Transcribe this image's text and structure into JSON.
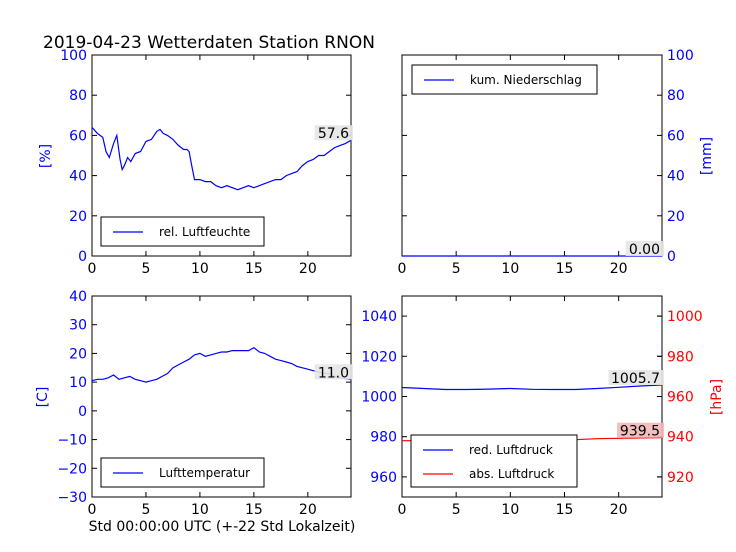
{
  "title": "2019-04-23 Wetterdaten Station RNON",
  "xlabel_bottom": "Std 00:00:00 UTC (+-22 Std Lokalzeit)",
  "colors": {
    "blue": "#0000ff",
    "red": "#ff0000",
    "ink": "#000000",
    "last_bg": "#e6e6e6",
    "last_bg_red": "#f2b8b8"
  },
  "chart_data": [
    {
      "id": "humidity",
      "type": "line",
      "ylabel": "[%]",
      "ylim": [
        0,
        100
      ],
      "yticks": [
        0,
        20,
        40,
        60,
        80,
        100
      ],
      "xlim": [
        0,
        24
      ],
      "xticks": [
        0,
        5,
        10,
        15,
        20
      ],
      "legend": {
        "loc": "lower-left",
        "entries": [
          "rel. Luftfeuchte"
        ]
      },
      "last_value_label": "57.6",
      "series": [
        {
          "name": "rel. Luftfeuchte",
          "color": "#0000ff",
          "x": [
            0,
            0.5,
            1,
            1.3,
            1.6,
            2,
            2.3,
            2.6,
            2.8,
            3,
            3.3,
            3.6,
            4,
            4.5,
            5,
            5.5,
            6,
            6.3,
            6.6,
            7,
            7.5,
            8,
            8.5,
            8.8,
            9,
            9.2,
            9.5,
            10,
            10.5,
            11,
            11.5,
            12,
            12.5,
            13,
            13.5,
            14,
            14.5,
            15,
            15.5,
            16,
            16.5,
            17,
            17.5,
            18,
            18.5,
            19,
            19.5,
            20,
            20.5,
            21,
            21.5,
            22,
            22.5,
            23,
            23.5,
            24
          ],
          "y": [
            64,
            61,
            59,
            52,
            49,
            56,
            60,
            48,
            43,
            45,
            49,
            47,
            51,
            52,
            57,
            58,
            62,
            63,
            61,
            60,
            58,
            55,
            53,
            53,
            52,
            46,
            38,
            38,
            37,
            37,
            35,
            34,
            35,
            34,
            33,
            34,
            35,
            34,
            35,
            36,
            37,
            38,
            38,
            40,
            41,
            42,
            45,
            47,
            48,
            50,
            50,
            52,
            54,
            55,
            56,
            57.6
          ]
        }
      ]
    },
    {
      "id": "precip",
      "type": "line",
      "ylabel": "[mm]",
      "ylim": [
        0,
        100
      ],
      "yticks": [
        0,
        20,
        40,
        60,
        80,
        100
      ],
      "xlim": [
        0,
        24
      ],
      "xticks": [
        0,
        5,
        10,
        15,
        20
      ],
      "legend": {
        "loc": "top-left",
        "entries": [
          "kum. Niederschlag"
        ]
      },
      "last_value_label": "0.00",
      "series": [
        {
          "name": "kum. Niederschlag",
          "color": "#0000ff",
          "x": [
            0,
            24
          ],
          "y": [
            0,
            0
          ]
        }
      ]
    },
    {
      "id": "temperature",
      "type": "line",
      "ylabel": "[C]",
      "ylim": [
        -30,
        40
      ],
      "yticks": [
        -30,
        -20,
        -10,
        0,
        10,
        20,
        30,
        40
      ],
      "xlim": [
        0,
        24
      ],
      "xticks": [
        0,
        5,
        10,
        15,
        20
      ],
      "legend": {
        "loc": "lower-left",
        "entries": [
          "Lufttemperatur"
        ]
      },
      "last_value_label": "11.0",
      "series": [
        {
          "name": "Lufttemperatur",
          "color": "#0000ff",
          "x": [
            0,
            0.5,
            1,
            1.5,
            2,
            2.5,
            3,
            3.5,
            4,
            4.5,
            5,
            5.5,
            6,
            6.5,
            7,
            7.5,
            8,
            8.5,
            9,
            9.5,
            10,
            10.5,
            11,
            11.5,
            12,
            12.5,
            13,
            13.5,
            14,
            14.5,
            15,
            15.5,
            16,
            16.5,
            17,
            17.5,
            18,
            18.5,
            19,
            19.5,
            20,
            20.5,
            21,
            21.5,
            22,
            22.5,
            23,
            23.5,
            24
          ],
          "y": [
            10.5,
            11,
            11,
            11.5,
            12.5,
            11,
            11.5,
            12,
            11,
            10.5,
            10,
            10.5,
            11,
            12,
            13,
            15,
            16,
            17,
            18,
            19.5,
            20,
            19,
            19.5,
            20,
            20.5,
            20.5,
            21,
            21,
            21,
            21,
            22,
            20.5,
            20,
            19,
            18,
            17.5,
            17,
            16.5,
            15.5,
            15,
            14.5,
            14,
            13.5,
            13,
            13,
            12,
            11.5,
            11.2,
            11.0
          ]
        }
      ]
    },
    {
      "id": "pressure",
      "type": "line",
      "ylabel_right": "[hPa]",
      "ylim": [
        950,
        1050
      ],
      "yticks": [
        960,
        980,
        1000,
        1020,
        1040
      ],
      "ylim_right": [
        910,
        1010
      ],
      "yticks_right": [
        920,
        940,
        960,
        980,
        1000
      ],
      "xlim": [
        0,
        24
      ],
      "xticks": [
        0,
        5,
        10,
        15,
        20
      ],
      "legend": {
        "loc": "lower-left",
        "entries": [
          "red. Luftdruck",
          "abs. Luftdruck"
        ]
      },
      "last_value_label": "1005.7",
      "last_value_label_right": "939.5",
      "series": [
        {
          "name": "red. Luftdruck",
          "color": "#0000ff",
          "axis": "left",
          "x": [
            0,
            2,
            4,
            6,
            8,
            10,
            12,
            14,
            16,
            18,
            20,
            22,
            24
          ],
          "y": [
            1004.5,
            1004,
            1003.5,
            1003.5,
            1003.7,
            1004,
            1003.6,
            1003.5,
            1003.5,
            1004,
            1004.6,
            1005.2,
            1005.7
          ]
        },
        {
          "name": "abs. Luftdruck",
          "color": "#ff0000",
          "axis": "right",
          "x": [
            0,
            2,
            4,
            5,
            6,
            8,
            10,
            12,
            14,
            16,
            18,
            20,
            22,
            24
          ],
          "y": [
            938,
            938,
            937.5,
            937,
            937.5,
            938.5,
            939,
            939,
            939,
            938.5,
            939,
            939.2,
            939.4,
            939.5
          ]
        }
      ]
    }
  ]
}
